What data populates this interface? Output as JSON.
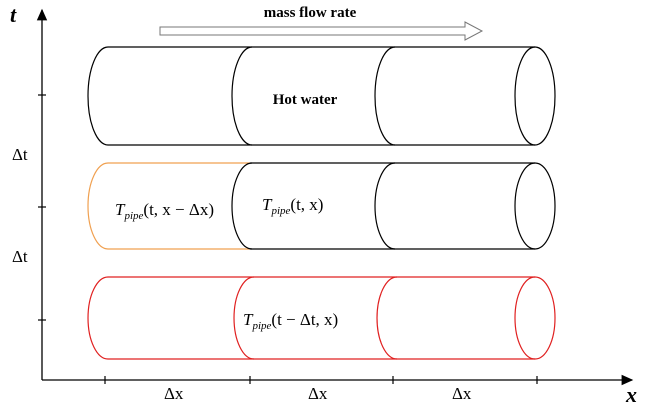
{
  "axis": {
    "y_label": "t",
    "x_label": "x"
  },
  "flow_label": "mass flow rate",
  "hot_water_label": "Hot water",
  "delta_t_labels": [
    "Δt",
    "Δt"
  ],
  "delta_x_labels": [
    "Δx",
    "Δx",
    "Δx"
  ],
  "temperature_labels": [
    {
      "main": "T",
      "sub": "pipe",
      "args": "(t, x − Δx)"
    },
    {
      "main": "T",
      "sub": "pipe",
      "args": "(t, x)"
    },
    {
      "main": "T",
      "sub": "pipe",
      "args": "(t − Δt, x)"
    }
  ]
}
